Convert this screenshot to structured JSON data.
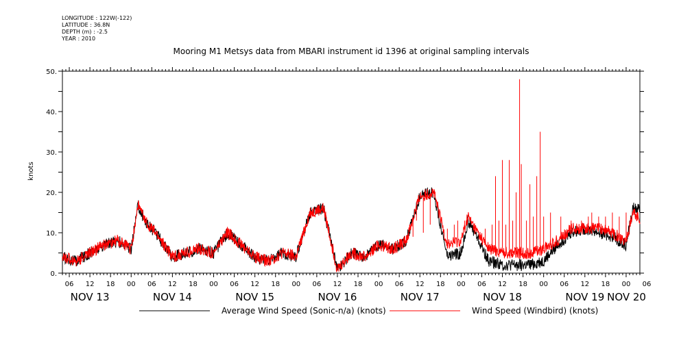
{
  "header": {
    "longitude": "LONGITUDE : 122W(-122)",
    "latitude": "LATITUDE : 36.8N",
    "depth": "DEPTH (m) : -2.5",
    "year": "YEAR : 2010"
  },
  "chart_data": {
    "type": "line",
    "title": "Mooring M1 Metsys data from MBARI instrument id 1396 at original sampling intervals",
    "xlabel": "",
    "ylabel": "knots",
    "ylim": [
      0,
      50
    ],
    "yticks": [
      "0.",
      "10.",
      "20.",
      "30.",
      "40.",
      "50."
    ],
    "xlim_hours": [
      4,
      172
    ],
    "hour_tick_labels": [
      "06",
      "12",
      "18",
      "00",
      "06",
      "12",
      "18",
      "00",
      "06",
      "12",
      "18",
      "00",
      "06",
      "12",
      "18",
      "00",
      "06",
      "12",
      "18",
      "00",
      "06",
      "12",
      "18",
      "00",
      "06",
      "12",
      "18",
      "00",
      "06"
    ],
    "day_labels": [
      "NOV 13",
      "NOV 14",
      "NOV 15",
      "NOV 16",
      "NOV 17",
      "NOV 18",
      "NOV 19",
      "NOV 20"
    ],
    "grid": false,
    "legend_position": "bottom",
    "series": [
      {
        "name": "Average Wind Speed (Sonic-n/a) (knots)",
        "color": "#000000",
        "x_hours": [
          4,
          8,
          12,
          16,
          20,
          24,
          26,
          28,
          32,
          36,
          40,
          44,
          48,
          52,
          56,
          60,
          64,
          68,
          72,
          76,
          80,
          84,
          88,
          92,
          96,
          100,
          104,
          108,
          112,
          116,
          120,
          122,
          124,
          128,
          132,
          136,
          140,
          144,
          148,
          152,
          156,
          160,
          164,
          168,
          170,
          172
        ],
        "values": [
          4,
          3,
          5,
          7,
          8,
          6,
          17,
          13,
          9,
          4,
          5,
          6,
          5,
          10,
          7,
          4,
          3,
          5,
          4,
          15,
          16,
          1,
          5,
          4,
          7,
          6,
          8,
          19,
          20,
          4,
          5,
          13,
          10,
          3,
          2,
          2,
          2,
          3,
          7,
          10,
          11,
          10,
          9,
          7,
          16,
          16
        ]
      },
      {
        "name": "Wind Speed (Windbird) (knots)",
        "color": "#ff0000",
        "x_hours": [
          4,
          8,
          12,
          16,
          20,
          24,
          26,
          28,
          32,
          36,
          40,
          44,
          48,
          52,
          56,
          60,
          64,
          68,
          72,
          76,
          80,
          84,
          88,
          92,
          96,
          100,
          104,
          108,
          112,
          116,
          120,
          122,
          124,
          128,
          132,
          136,
          140,
          144,
          148,
          152,
          156,
          160,
          164,
          168,
          170,
          172
        ],
        "values": [
          4,
          3,
          5,
          7,
          8,
          6,
          17,
          13,
          9,
          4,
          5,
          6,
          5,
          10,
          7,
          4,
          3,
          5,
          4,
          15,
          16,
          1,
          5,
          4,
          7,
          6,
          8,
          19,
          20,
          7,
          8,
          14,
          11,
          6,
          5,
          5,
          5,
          6,
          8,
          11,
          11,
          11,
          10,
          8,
          15,
          13
        ],
        "spikes": [
          [
            105,
            12
          ],
          [
            106,
            9
          ],
          [
            107,
            13
          ],
          [
            109,
            10
          ],
          [
            111,
            12
          ],
          [
            114,
            13
          ],
          [
            116,
            11
          ],
          [
            118,
            12
          ],
          [
            119,
            13
          ],
          [
            121,
            13
          ],
          [
            123,
            12
          ],
          [
            127,
            11
          ],
          [
            129,
            12
          ],
          [
            130,
            24
          ],
          [
            131,
            13
          ],
          [
            132,
            28
          ],
          [
            133,
            12
          ],
          [
            134,
            28
          ],
          [
            135,
            13
          ],
          [
            136,
            20
          ],
          [
            137,
            48
          ],
          [
            137.5,
            27
          ],
          [
            139,
            13
          ],
          [
            140,
            22
          ],
          [
            141,
            14
          ],
          [
            142,
            24
          ],
          [
            143,
            35
          ],
          [
            144,
            14
          ],
          [
            146,
            15
          ],
          [
            149,
            14
          ],
          [
            152,
            13
          ],
          [
            155,
            13
          ],
          [
            157,
            14
          ],
          [
            158,
            15
          ],
          [
            160,
            14
          ],
          [
            162,
            14
          ],
          [
            164,
            15
          ],
          [
            166,
            14
          ],
          [
            168,
            15
          ]
        ]
      }
    ]
  }
}
